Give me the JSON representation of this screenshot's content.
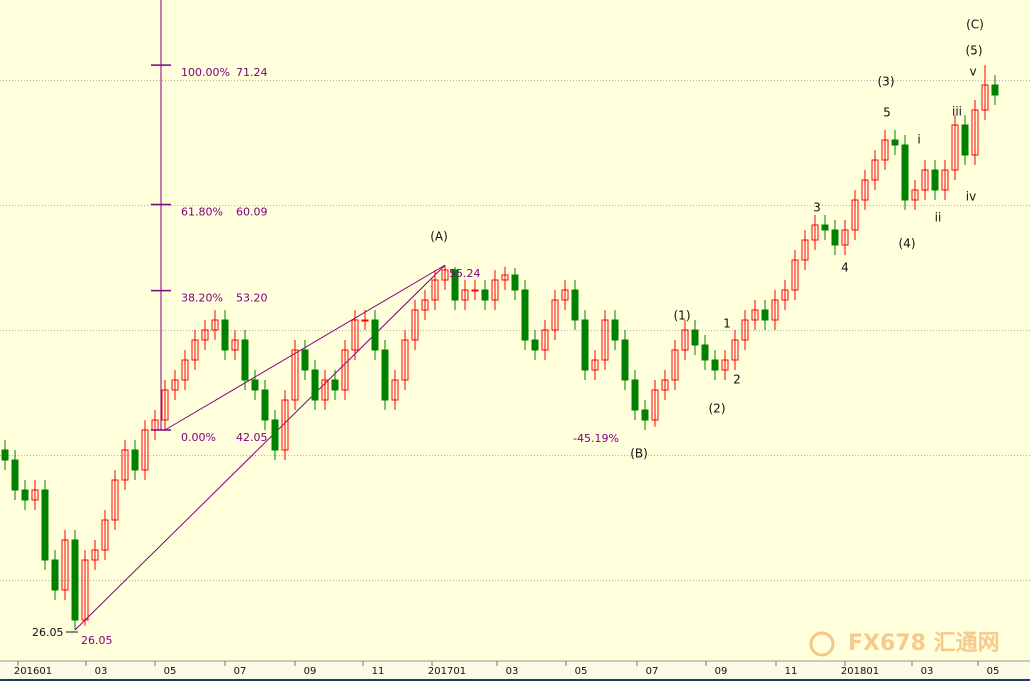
{
  "chart_data": {
    "type": "candlestick",
    "xlim": [
      -0.5,
      102.5
    ],
    "xticks": [
      {
        "value": 2.8,
        "label": "201601"
      },
      {
        "value": 9.6,
        "label": "03"
      },
      {
        "value": 16.5,
        "label": "05"
      },
      {
        "value": 23.5,
        "label": "07"
      },
      {
        "value": 30.5,
        "label": "09"
      },
      {
        "value": 37.3,
        "label": "11"
      },
      {
        "value": 44.2,
        "label": "201701"
      },
      {
        "value": 50.7,
        "label": "03"
      },
      {
        "value": 57.6,
        "label": "05"
      },
      {
        "value": 64.7,
        "label": "07"
      },
      {
        "value": 71.6,
        "label": "09"
      },
      {
        "value": 78.6,
        "label": "11"
      },
      {
        "value": 85.5,
        "label": "201801"
      },
      {
        "value": 92.2,
        "label": "03"
      },
      {
        "value": 98.8,
        "label": "05"
      }
    ],
    "ylim": [
      23.65,
      76.45
    ],
    "yticks": [
      30,
      40,
      50,
      60,
      70
    ],
    "grid": true,
    "up_color": "#ff0000",
    "down_color": "#008000",
    "open": [
      40.45,
      39.65,
      37.25,
      36.45,
      37.25,
      31.65,
      29.25,
      33.25,
      26.85,
      31.65,
      32.45,
      34.85,
      38.05,
      40.45,
      38.85,
      42.05,
      42.85,
      45.25,
      46.05,
      47.65,
      49.25,
      50.05,
      50.85,
      48.45,
      49.25,
      46.05,
      45.25,
      42.85,
      40.45,
      44.45,
      48.45,
      46.85,
      44.45,
      46.05,
      45.25,
      48.45,
      50.85,
      50.85,
      48.45,
      44.45,
      46.05,
      49.25,
      51.65,
      52.45,
      54.05,
      54.85,
      52.45,
      53.25,
      53.25,
      52.45,
      54.05,
      54.45,
      53.25,
      49.25,
      48.45,
      50.05,
      52.45,
      53.25,
      50.85,
      46.85,
      47.65,
      50.85,
      49.25,
      46.05,
      43.65,
      42.85,
      45.25,
      46.05,
      48.45,
      50.05,
      48.85,
      47.65,
      46.85,
      47.65,
      49.25,
      50.85,
      51.65,
      50.85,
      52.45,
      53.25,
      55.65,
      57.25,
      58.45,
      58.05,
      56.85,
      58.05,
      60.45,
      62.05,
      63.65,
      65.25,
      64.85,
      60.45,
      61.25,
      62.85,
      61.25,
      62.85,
      66.45,
      64.05,
      67.65,
      69.65
    ],
    "high": [
      41.25,
      40.45,
      38.05,
      38.05,
      38.05,
      32.45,
      34.05,
      34.05,
      32.45,
      33.25,
      35.65,
      38.85,
      41.25,
      41.25,
      42.85,
      43.65,
      46.05,
      46.85,
      48.45,
      50.05,
      50.85,
      51.65,
      51.65,
      50.05,
      50.05,
      46.85,
      46.05,
      43.65,
      45.25,
      49.25,
      49.25,
      47.65,
      46.85,
      46.85,
      49.25,
      51.65,
      51.65,
      51.65,
      49.25,
      46.85,
      50.05,
      52.45,
      53.25,
      54.85,
      55.24,
      55.1,
      54.05,
      54.05,
      54.05,
      54.85,
      55.1,
      55.0,
      54.05,
      50.05,
      50.85,
      53.25,
      54.05,
      54.05,
      51.65,
      48.45,
      51.65,
      51.65,
      50.05,
      46.85,
      44.45,
      46.05,
      46.85,
      49.25,
      50.85,
      50.85,
      49.65,
      48.45,
      48.45,
      50.05,
      51.65,
      52.45,
      52.45,
      53.25,
      54.05,
      56.45,
      58.05,
      59.25,
      59.25,
      58.85,
      58.85,
      61.25,
      62.85,
      64.45,
      66.05,
      66.05,
      65.65,
      62.05,
      63.65,
      63.65,
      63.65,
      67.25,
      67.25,
      68.45,
      71.24,
      70.45
    ],
    "low": [
      38.85,
      36.45,
      35.65,
      35.65,
      30.85,
      28.45,
      28.45,
      26.05,
      26.4,
      30.85,
      31.65,
      34.05,
      37.25,
      38.05,
      38.05,
      41.25,
      42.05,
      44.45,
      45.25,
      46.85,
      48.45,
      49.25,
      47.65,
      47.65,
      45.25,
      44.45,
      42.05,
      39.65,
      39.65,
      43.65,
      46.05,
      43.65,
      43.65,
      44.45,
      44.45,
      47.65,
      50.05,
      47.65,
      43.65,
      43.65,
      45.25,
      48.45,
      50.85,
      51.65,
      53.25,
      51.65,
      51.65,
      52.45,
      51.65,
      51.65,
      53.25,
      52.45,
      48.45,
      47.65,
      47.65,
      49.25,
      51.65,
      50.05,
      46.05,
      46.05,
      46.85,
      48.45,
      45.25,
      42.85,
      42.05,
      42.3,
      44.45,
      45.25,
      47.65,
      48.05,
      46.85,
      46.05,
      46.05,
      46.85,
      48.45,
      50.05,
      50.05,
      50.05,
      51.65,
      52.45,
      54.85,
      56.45,
      57.25,
      56.05,
      56.05,
      57.25,
      59.65,
      61.25,
      62.85,
      64.05,
      59.65,
      59.65,
      60.45,
      60.45,
      60.45,
      62.05,
      63.25,
      63.25,
      66.85,
      68.05
    ],
    "close": [
      39.65,
      37.25,
      36.45,
      37.25,
      31.65,
      29.25,
      33.25,
      26.85,
      31.65,
      32.45,
      34.85,
      38.05,
      40.45,
      38.85,
      42.05,
      42.85,
      45.25,
      46.05,
      47.65,
      49.25,
      50.05,
      50.85,
      48.45,
      49.25,
      46.05,
      45.25,
      42.85,
      40.45,
      44.45,
      48.45,
      46.85,
      44.45,
      46.05,
      45.25,
      48.45,
      50.85,
      50.85,
      48.45,
      44.45,
      46.05,
      49.25,
      51.65,
      52.45,
      54.05,
      54.85,
      52.45,
      53.25,
      53.25,
      52.45,
      54.05,
      54.45,
      53.25,
      49.25,
      48.45,
      50.05,
      52.45,
      53.25,
      50.85,
      46.85,
      47.65,
      50.85,
      49.25,
      46.05,
      43.65,
      42.85,
      45.25,
      46.05,
      48.45,
      50.05,
      48.85,
      47.65,
      46.85,
      47.65,
      49.25,
      50.85,
      51.65,
      50.85,
      52.45,
      53.25,
      55.65,
      57.25,
      58.45,
      58.05,
      56.85,
      58.05,
      60.45,
      62.05,
      63.65,
      65.25,
      64.85,
      60.45,
      61.25,
      62.85,
      61.25,
      62.85,
      66.45,
      64.05,
      67.65,
      69.65,
      68.85
    ],
    "fibonacci": {
      "color": "#800080",
      "levels": [
        {
          "ratio": {
            "value": 100,
            "label": "100.00%"
          },
          "price": 71.24
        },
        {
          "ratio": {
            "value": 61.8,
            "label": "61.80%"
          },
          "price": 60.09
        },
        {
          "ratio": {
            "value": 38.2,
            "label": "38.20%"
          },
          "price": {
            "value": 53.2,
            "label": "53.20"
          }
        },
        {
          "ratio": {
            "value": 0,
            "label": "0.00%"
          },
          "price": 42.05
        }
      ]
    },
    "low_price": 26.05,
    "peak_price": 55.24,
    "retrace": {
      "value": -45.19,
      "label": "-45.19%"
    },
    "wave_labels": [
      "(A)",
      "(B)",
      "(C)",
      "(5)",
      "v",
      "(3)",
      "5",
      "i",
      "iii",
      "ii",
      "iv",
      "(4)",
      "3",
      "4",
      "1",
      "2",
      "(1)",
      "(2)"
    ],
    "watermark": "FX678 汇通网"
  }
}
